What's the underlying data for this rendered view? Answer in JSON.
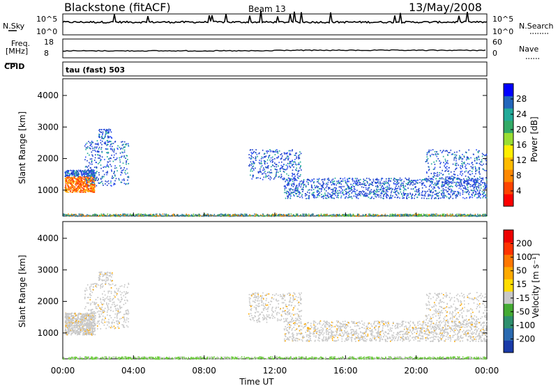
{
  "header": {
    "station": "Blackstone (fitACF)",
    "beam": "Beam 13",
    "date": "13/May/2008"
  },
  "strip_panels": {
    "left_labels": {
      "nsky": "N.Sky",
      "freq": "Freq.",
      "mhz": "[MHz]",
      "cpid": "CPID"
    },
    "right_labels": {
      "nsearch": "N.Search",
      "nave": "Nave"
    },
    "nsky_ticks": [
      "10^5",
      "10^0"
    ],
    "nsearch_ticks": [
      "10^5",
      "10^0"
    ],
    "freq_ticks": [
      "18",
      "8"
    ],
    "nave_ticks": [
      "60",
      "0"
    ],
    "cpid_text": "tau (fast) 503"
  },
  "chart_data": [
    {
      "type": "heatmap",
      "name": "power",
      "ylabel": "Slant Range [km]",
      "yticks": [
        "4000",
        "3000",
        "2000",
        "1000"
      ],
      "ylim": [
        180,
        4530
      ],
      "colorbar_label": "Power [dB]",
      "colorbar_ticks": [
        "28",
        "24",
        "20",
        "16",
        "12",
        "8",
        "4"
      ],
      "colorbar_colors": [
        "#ff0000",
        "#ff4400",
        "#ff8800",
        "#ffbb00",
        "#ffee00",
        "#99dd33",
        "#33aa66",
        "#22aa99",
        "#2266bb",
        "#0000ff"
      ]
    },
    {
      "type": "heatmap",
      "name": "velocity",
      "ylabel": "Slant Range [km]",
      "yticks": [
        "4000",
        "3000",
        "2000",
        "1000"
      ],
      "ylim": [
        180,
        4530
      ],
      "colorbar_label": "Velocity [m s⁻¹]",
      "colorbar_ticks": [
        "200",
        "100",
        "50",
        "15",
        "-15",
        "-50",
        "-100",
        "-200"
      ],
      "colorbar_colors": [
        "#1a3aa8",
        "#2a6ab0",
        "#2e8f6e",
        "#44aa33",
        "#c8c8c8",
        "#ffdd00",
        "#ffaa00",
        "#ff7700",
        "#ff3300",
        "#ee0000"
      ]
    }
  ],
  "xaxis": {
    "ticks": [
      "00:00",
      "04:00",
      "08:00",
      "12:00",
      "16:00",
      "20:00",
      "00:00"
    ],
    "label": "Time UT"
  }
}
